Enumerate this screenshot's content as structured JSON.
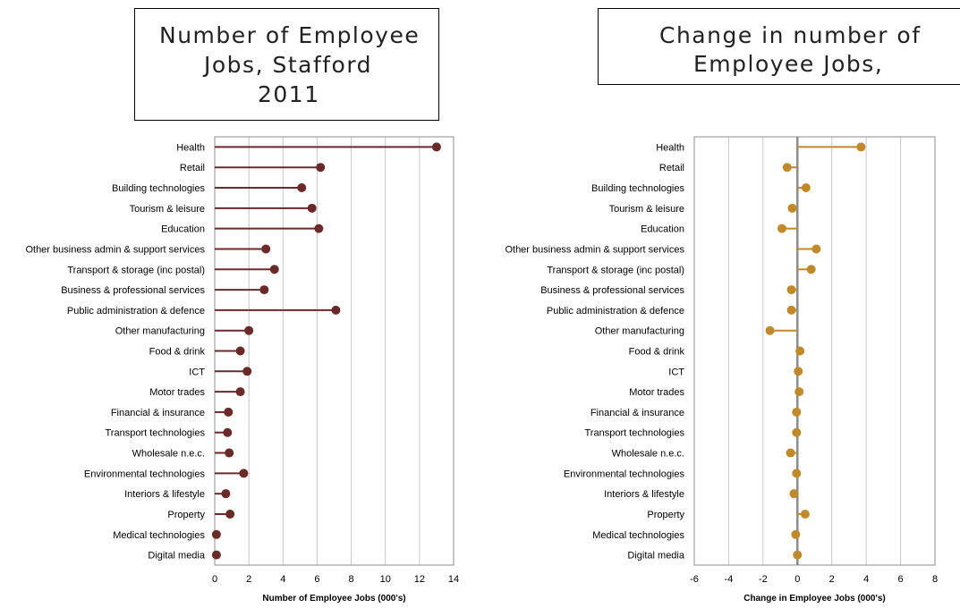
{
  "chart_data": [
    {
      "type": "lollipop",
      "title": "Number of Employee Jobs, Stafford 2011",
      "title_lines": [
        "Number of Employee",
        "Jobs, Stafford",
        "2011"
      ],
      "xlabel": "Number of Employee Jobs (000's)",
      "ylabel": "",
      "xlim": [
        0,
        14
      ],
      "xticks": [
        "0",
        "2",
        "4",
        "6",
        "8",
        "10",
        "12",
        "14"
      ],
      "grid": true,
      "color": "#6b2a2a",
      "categories": [
        "Health",
        "Retail",
        "Building technologies",
        "Tourism & leisure",
        "Education",
        "Other business admin & support services",
        "Transport & storage (inc postal)",
        "Business & professional services",
        "Public administration & defence",
        "Other manufacturing",
        "Food & drink",
        "ICT",
        "Motor trades",
        "Financial & insurance",
        "Transport technologies",
        "Wholesale n.e.c.",
        "Environmental technologies",
        "Interiors & lifestyle",
        "Property",
        "Medical technologies",
        "Digital media"
      ],
      "values": [
        13.0,
        6.2,
        5.1,
        5.7,
        6.1,
        3.0,
        3.5,
        2.9,
        7.1,
        2.0,
        1.5,
        1.9,
        1.5,
        0.8,
        0.75,
        0.85,
        1.7,
        0.65,
        0.9,
        0.1,
        0.1
      ]
    },
    {
      "type": "lollipop",
      "title": "Change in number of Employee Jobs,",
      "title_lines": [
        "Change in number of",
        "Employee Jobs,"
      ],
      "xlabel": "Change in Employee Jobs (000's)",
      "ylabel": "",
      "xlim": [
        -6,
        8
      ],
      "xticks": [
        "-6",
        "-4",
        "-2",
        "0",
        "2",
        "4",
        "6",
        "8"
      ],
      "grid": true,
      "color": "#c08a2a",
      "categories": [
        "Health",
        "Retail",
        "Building technologies",
        "Tourism & leisure",
        "Education",
        "Other business admin & support services",
        "Transport & storage (inc postal)",
        "Business & professional services",
        "Public administration & defence",
        "Other manufacturing",
        "Food & drink",
        "ICT",
        "Motor trades",
        "Financial & insurance",
        "Transport technologies",
        "Wholesale n.e.c.",
        "Environmental technologies",
        "Interiors & lifestyle",
        "Property",
        "Medical technologies",
        "Digital media"
      ],
      "values": [
        3.7,
        -0.6,
        0.5,
        -0.3,
        -0.9,
        1.1,
        0.8,
        -0.35,
        -0.35,
        -1.6,
        0.15,
        0.05,
        0.1,
        -0.05,
        -0.05,
        -0.4,
        -0.05,
        -0.2,
        0.45,
        -0.1,
        0.0
      ]
    }
  ]
}
